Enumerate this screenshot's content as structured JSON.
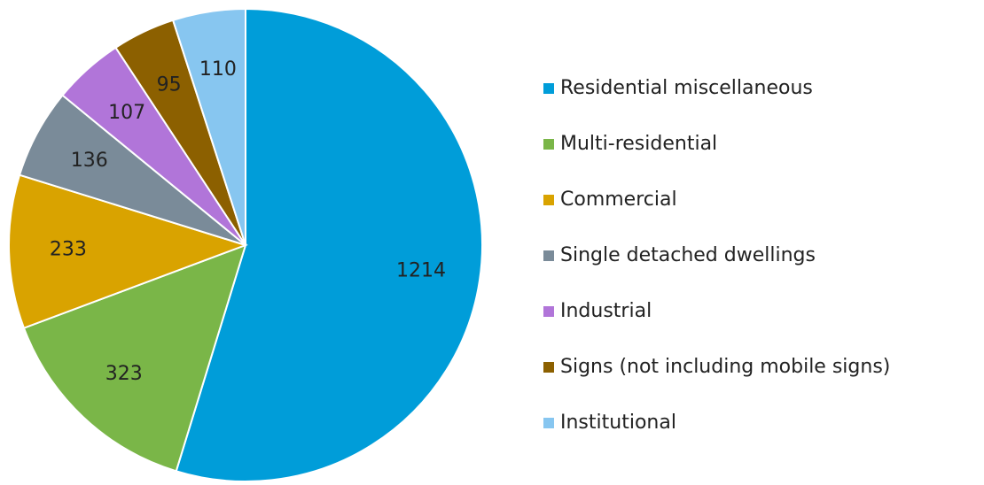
{
  "chart_data": {
    "type": "pie",
    "categories": [
      "Residential miscellaneous",
      "Multi-residential",
      "Commercial",
      "Single detached dwellings",
      "Industrial",
      "Signs (not including mobile signs)",
      "Institutional"
    ],
    "values": [
      1214,
      323,
      233,
      136,
      107,
      95,
      110
    ],
    "colors": [
      "#009dd9",
      "#7ab648",
      "#d9a300",
      "#7a8b99",
      "#b175d9",
      "#8c6000",
      "#87c6f0"
    ],
    "start_angle": 0,
    "direction": "clockwise",
    "legend": "right"
  }
}
